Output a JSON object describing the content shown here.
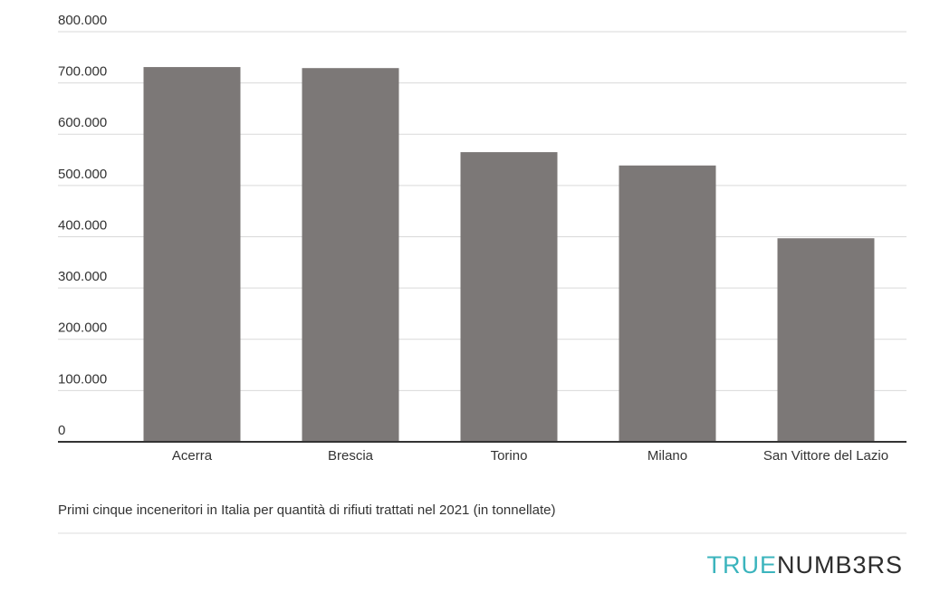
{
  "chart_data": {
    "type": "bar",
    "caption": "Primi cinque inceneritori in Italia per quantità di rifiuti trattati nel 2021 (in tonnellate)",
    "categories": [
      "Acerra",
      "Brescia",
      "Torino",
      "Milano",
      "San Vittore del Lazio"
    ],
    "values": [
      731000,
      729000,
      565000,
      539000,
      397000
    ],
    "color": "#7c7877",
    "ylim": [
      0,
      800000
    ],
    "yticks": [
      0,
      {
        "value": 100000,
        "label": "100.000"
      },
      {
        "value": 200000,
        "label": "200.000"
      },
      {
        "value": 300000,
        "label": "300.000"
      },
      {
        "value": 400000,
        "label": "400.000"
      },
      {
        "value": 500000,
        "label": "500.000"
      },
      {
        "value": 600000,
        "label": "600.000"
      },
      {
        "value": 700000,
        "label": "700.000"
      },
      {
        "value": 800000,
        "label": "800.000"
      }
    ],
    "grid": true
  },
  "logo": {
    "first": "TRUE",
    "second": "NUMB3RS"
  }
}
